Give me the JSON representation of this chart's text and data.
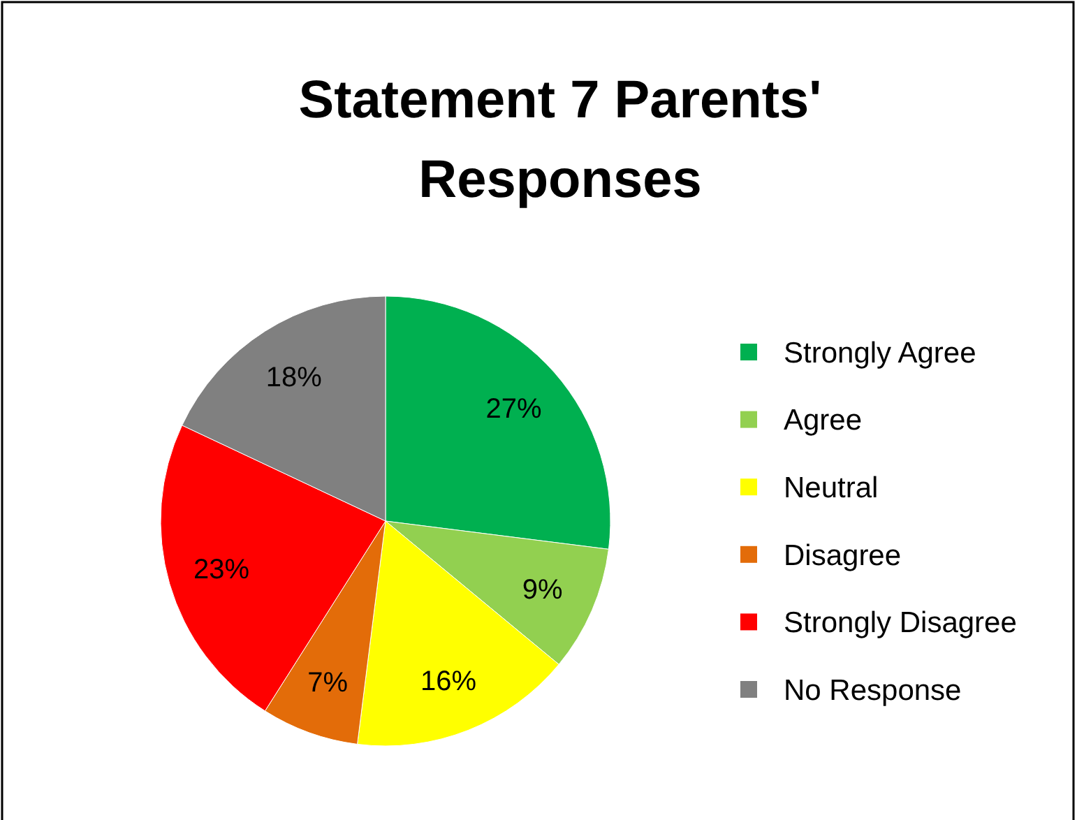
{
  "chart_data": {
    "type": "pie",
    "title": "Statement 7 Parents' Responses",
    "categories": [
      "Strongly Agree",
      "Agree",
      "Neutral",
      "Disagree",
      "Strongly Disagree",
      "No Response"
    ],
    "values": [
      27,
      9,
      16,
      7,
      23,
      18
    ],
    "colors": [
      "#00b050",
      "#92d050",
      "#ffff00",
      "#e36c09",
      "#ff0000",
      "#808080"
    ],
    "value_labels": [
      "27%",
      "9%",
      "16%",
      "7%",
      "23%",
      "18%"
    ],
    "legend": "right"
  }
}
